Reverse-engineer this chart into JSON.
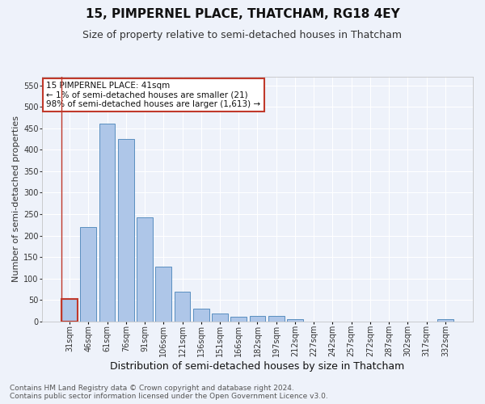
{
  "title": "15, PIMPERNEL PLACE, THATCHAM, RG18 4EY",
  "subtitle": "Size of property relative to semi-detached houses in Thatcham",
  "xlabel": "Distribution of semi-detached houses by size in Thatcham",
  "ylabel": "Number of semi-detached properties",
  "categories": [
    "31sqm",
    "46sqm",
    "61sqm",
    "76sqm",
    "91sqm",
    "106sqm",
    "121sqm",
    "136sqm",
    "151sqm",
    "166sqm",
    "182sqm",
    "197sqm",
    "212sqm",
    "227sqm",
    "242sqm",
    "257sqm",
    "272sqm",
    "287sqm",
    "302sqm",
    "317sqm",
    "332sqm"
  ],
  "values": [
    52,
    220,
    460,
    425,
    242,
    128,
    70,
    30,
    18,
    10,
    12,
    12,
    5,
    0,
    0,
    0,
    0,
    0,
    0,
    0,
    5
  ],
  "bar_color": "#aec6e8",
  "bar_edge_color": "#5a8fc0",
  "highlight_bar_index": 0,
  "highlight_bar_edge_color": "#c0392b",
  "annotation_title": "15 PIMPERNEL PLACE: 41sqm",
  "annotation_line1": "← 1% of semi-detached houses are smaller (21)",
  "annotation_line2": "98% of semi-detached houses are larger (1,613) →",
  "annotation_box_color": "#ffffff",
  "annotation_box_edge_color": "#c0392b",
  "ylim": [
    0,
    570
  ],
  "yticks": [
    0,
    50,
    100,
    150,
    200,
    250,
    300,
    350,
    400,
    450,
    500,
    550
  ],
  "footer_line1": "Contains HM Land Registry data © Crown copyright and database right 2024.",
  "footer_line2": "Contains public sector information licensed under the Open Government Licence v3.0.",
  "bg_color": "#eef2fa",
  "grid_color": "#ffffff",
  "title_fontsize": 11,
  "subtitle_fontsize": 9,
  "xlabel_fontsize": 9,
  "ylabel_fontsize": 8,
  "tick_fontsize": 7,
  "annotation_fontsize": 7.5,
  "footer_fontsize": 6.5
}
